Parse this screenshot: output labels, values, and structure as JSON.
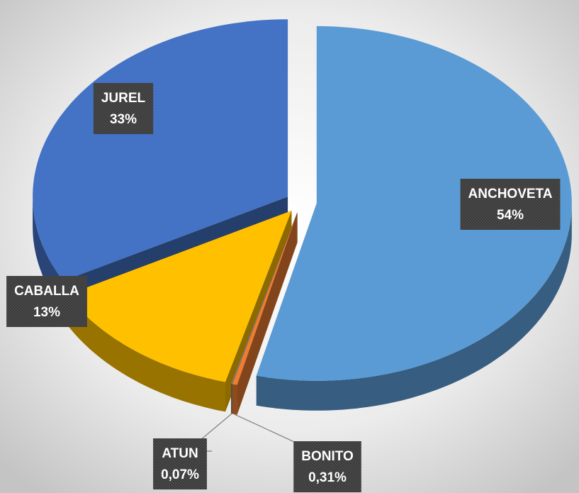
{
  "chart_data": {
    "type": "pie",
    "categories": [
      "ANCHOVETA",
      "BONITO",
      "ATUN",
      "CABALLA",
      "JUREL"
    ],
    "values": [
      54,
      0.31,
      0.07,
      13,
      33
    ],
    "value_labels": [
      "54%",
      "0,31%",
      "0,07%",
      "13%",
      "33%"
    ],
    "colors": [
      "#5b9bd5",
      "#ed7d31",
      "#7f7f7f",
      "#ffc000",
      "#4472c4"
    ]
  }
}
